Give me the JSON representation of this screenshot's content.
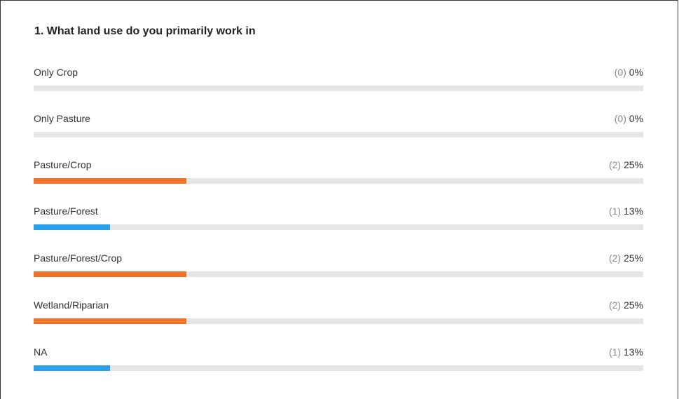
{
  "question": {
    "title": "1. What land use do you primarily work in"
  },
  "colors": {
    "track": "#e6e6e6",
    "orange": "#f07228",
    "blue": "#2aa1ed"
  },
  "chart_data": {
    "type": "bar",
    "orientation": "horizontal",
    "title": "1. What land use do you primarily work in",
    "categories": [
      "Only Crop",
      "Only Pasture",
      "Pasture/Crop",
      "Pasture/Forest",
      "Pasture/Forest/Crop",
      "Wetland/Riparian",
      "NA"
    ],
    "values": [
      0,
      0,
      2,
      1,
      2,
      2,
      1
    ],
    "percent_labels": [
      "0%",
      "0%",
      "25%",
      "13%",
      "25%",
      "25%",
      "13%"
    ],
    "count_labels": [
      "(0)",
      "(0)",
      "(2)",
      "(1)",
      "(2)",
      "(2)",
      "(1)"
    ],
    "bar_colors": [
      "#f07228",
      "#f07228",
      "#f07228",
      "#2aa1ed",
      "#f07228",
      "#f07228",
      "#2aa1ed"
    ],
    "xlim": [
      0,
      8
    ]
  },
  "options": [
    {
      "label": "Only Crop",
      "count": "(0)",
      "percent": "0%"
    },
    {
      "label": "Only Pasture",
      "count": "(0)",
      "percent": "0%"
    },
    {
      "label": "Pasture/Crop",
      "count": "(2)",
      "percent": "25%"
    },
    {
      "label": "Pasture/Forest",
      "count": "(1)",
      "percent": "13%"
    },
    {
      "label": "Pasture/Forest/Crop",
      "count": "(2)",
      "percent": "25%"
    },
    {
      "label": "Wetland/Riparian",
      "count": "(2)",
      "percent": "25%"
    },
    {
      "label": "NA",
      "count": "(1)",
      "percent": "13%"
    }
  ]
}
